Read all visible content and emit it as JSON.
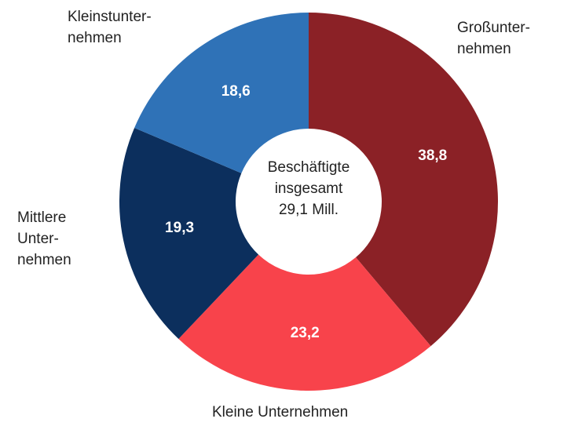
{
  "chart_data": {
    "type": "donut",
    "center_label": "Beschäftigte\ninsgesamt\n29,1 Mill.",
    "categories": [
      "Großunter-\nnehmen",
      "Kleine Unternehmen",
      "Mittlere\nUnter-\nnehmen",
      "Kleinstunter-\nnehmen"
    ],
    "values": [
      38.8,
      23.2,
      19.3,
      18.6
    ],
    "value_labels": [
      "38,8",
      "23,2",
      "19,3",
      "18,6"
    ],
    "colors": [
      "#8b2126",
      "#f8434b",
      "#0c2f5d",
      "#2f72b7"
    ]
  }
}
